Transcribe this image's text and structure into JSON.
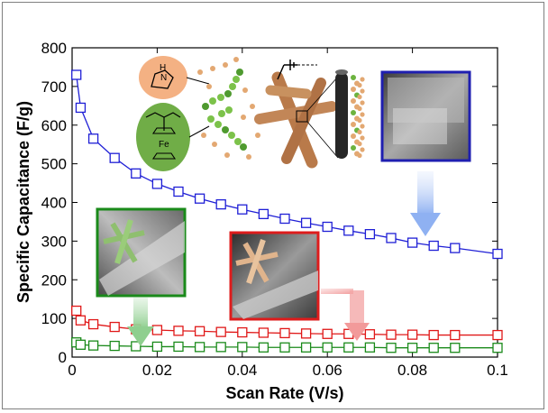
{
  "chart_data": {
    "type": "line",
    "title": "",
    "xlabel": "Scan Rate (V/s)",
    "ylabel": "Specific Capacitance (F/g)",
    "xlim": [
      0,
      0.1
    ],
    "ylim": [
      0,
      800
    ],
    "xticks": [
      "0",
      "0.02",
      "0.04",
      "0.06",
      "0.08",
      "0.1"
    ],
    "yticks": [
      "0",
      "100",
      "200",
      "300",
      "400",
      "500",
      "600",
      "700",
      "800"
    ],
    "grid": false,
    "marker": "open-square",
    "series": [
      {
        "color": "#1f1fd6",
        "x": [
          0.001,
          0.002,
          0.005,
          0.01,
          0.015,
          0.02,
          0.025,
          0.03,
          0.035,
          0.04,
          0.045,
          0.05,
          0.055,
          0.06,
          0.065,
          0.07,
          0.075,
          0.08,
          0.085,
          0.09,
          0.1
        ],
        "y": [
          730,
          645,
          565,
          515,
          475,
          448,
          428,
          410,
          395,
          382,
          370,
          358,
          347,
          337,
          327,
          318,
          308,
          296,
          288,
          282,
          267
        ]
      },
      {
        "color": "#e01818",
        "x": [
          0.001,
          0.002,
          0.005,
          0.01,
          0.015,
          0.02,
          0.025,
          0.03,
          0.035,
          0.04,
          0.045,
          0.05,
          0.055,
          0.06,
          0.065,
          0.07,
          0.075,
          0.08,
          0.085,
          0.09,
          0.1
        ],
        "y": [
          120,
          95,
          85,
          78,
          72,
          70,
          68,
          67,
          65,
          64,
          63,
          62,
          61,
          60,
          60,
          59,
          58,
          58,
          57,
          57,
          57
        ]
      },
      {
        "color": "#1a8a1a",
        "x": [
          0.001,
          0.002,
          0.005,
          0.01,
          0.015,
          0.02,
          0.025,
          0.03,
          0.035,
          0.04,
          0.045,
          0.05,
          0.055,
          0.06,
          0.065,
          0.07,
          0.075,
          0.08,
          0.085,
          0.09,
          0.1
        ],
        "y": [
          38,
          32,
          30,
          29,
          28,
          27,
          27,
          26,
          26,
          26,
          25,
          25,
          25,
          25,
          25,
          25,
          24,
          24,
          24,
          24,
          24
        ]
      }
    ]
  },
  "insets": {
    "pyrrole_label": "H\nN",
    "fe_label": "Fe"
  }
}
